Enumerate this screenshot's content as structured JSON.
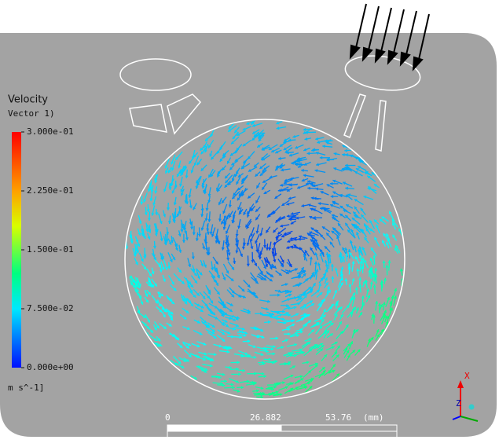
{
  "legend": {
    "title": "Velocity",
    "subtitle": "Vector 1)",
    "labels": [
      "3.000e-01",
      "2.250e-01",
      "1.500e-01",
      "7.500e-02",
      "0.000e+00"
    ],
    "unit": "m s^-1]"
  },
  "scale_bar": {
    "labels": [
      "0",
      "26.882",
      "53.76",
      "(mm)"
    ]
  },
  "axes": {
    "x": "X",
    "z": "Z"
  }
}
